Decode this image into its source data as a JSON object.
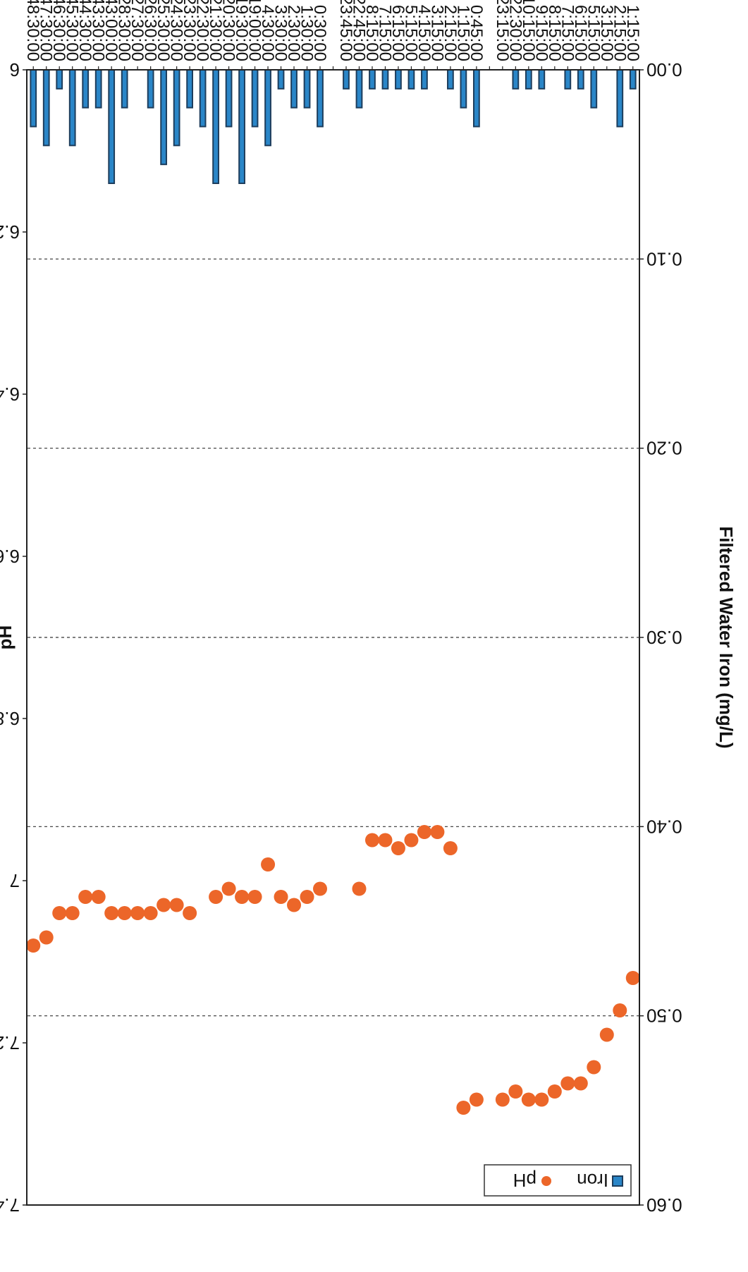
{
  "chart_data": {
    "type": "bar+scatter",
    "title": "",
    "xlabel": "",
    "ylabel_left": "Filtered Water Iron (mg/L)",
    "ylabel_right": "pH",
    "ylim_left": [
      0,
      0.6
    ],
    "ylim_right": [
      6,
      7.4
    ],
    "yticks_left": [
      "0.00",
      "0.10",
      "0.20",
      "0.30",
      "0.40",
      "0.50",
      "0.60"
    ],
    "yticks_right": [
      "6",
      "6.2",
      "6.4",
      "6.6",
      "6.8",
      "7",
      "7.2",
      "7.4"
    ],
    "gridlines_left": [
      0.1,
      0.2,
      0.3,
      0.4,
      0.5
    ],
    "legend": {
      "position": "top-left",
      "entries": [
        {
          "name": "Iron",
          "marker": "bar"
        },
        {
          "name": "pH",
          "marker": "dot"
        }
      ]
    },
    "colors": {
      "iron": "#2a86c8",
      "iron_edge": "#1d3d5c",
      "ph": "#ec6629"
    },
    "categories": [
      "1:15:00",
      "2:15:00",
      "3:15:00",
      "5:15:00",
      "6:15:00",
      "7:15:00",
      "8:15:00",
      "9:15:00",
      "10:15:00",
      "22:30:00",
      "23:15:00",
      "",
      "0:45:00",
      "1:15:00",
      "2:15:00",
      "3:15:00",
      "4:15:00",
      "5:15:00",
      "6:15:00",
      "7:15:00",
      "8:15:00",
      "22:45:00",
      "23:45:00",
      "",
      "0:30:00",
      "1:30:00",
      "2:30:00",
      "3:30:00",
      "4:30:00",
      "19:00:00",
      "19:30:00",
      "20:30:00",
      "21:30:00",
      "22:30:00",
      "23:30:00",
      "24:30:00",
      "25:30:00",
      "26:30:00",
      "27:30:00",
      "28:30:00",
      "43:00:00",
      "43:30:00",
      "44:30:00",
      "45:30:00",
      "46:30:00",
      "47:30:00",
      "48:30:00"
    ],
    "series": [
      {
        "name": "Iron",
        "kind": "bar",
        "values": [
          0.01,
          0.03,
          null,
          0.02,
          0.01,
          0.01,
          null,
          0.01,
          0.01,
          0.01,
          null,
          null,
          0.03,
          0.02,
          0.01,
          null,
          0.01,
          0.01,
          0.01,
          0.01,
          0.01,
          0.02,
          0.01,
          null,
          0.03,
          0.02,
          0.02,
          0.01,
          0.04,
          0.03,
          0.06,
          0.03,
          0.06,
          0.03,
          0.02,
          0.04,
          0.05,
          0.02,
          null,
          0.02,
          0.06,
          0.02,
          0.02,
          0.04,
          0.01,
          0.04,
          0.03
        ]
      },
      {
        "name": "pH",
        "kind": "scatter",
        "values": [
          7.12,
          7.16,
          7.19,
          7.23,
          7.25,
          7.25,
          7.26,
          7.27,
          7.27,
          7.26,
          7.27,
          null,
          7.27,
          7.28,
          6.96,
          6.94,
          6.94,
          6.95,
          6.96,
          6.95,
          6.95,
          7.01,
          null,
          null,
          7.01,
          7.02,
          7.03,
          7.02,
          6.98,
          7.02,
          7.02,
          7.01,
          7.02,
          null,
          7.04,
          7.03,
          7.03,
          7.04,
          7.04,
          7.04,
          7.04,
          7.02,
          7.02,
          7.04,
          7.04,
          7.07,
          7.08
        ]
      }
    ]
  }
}
